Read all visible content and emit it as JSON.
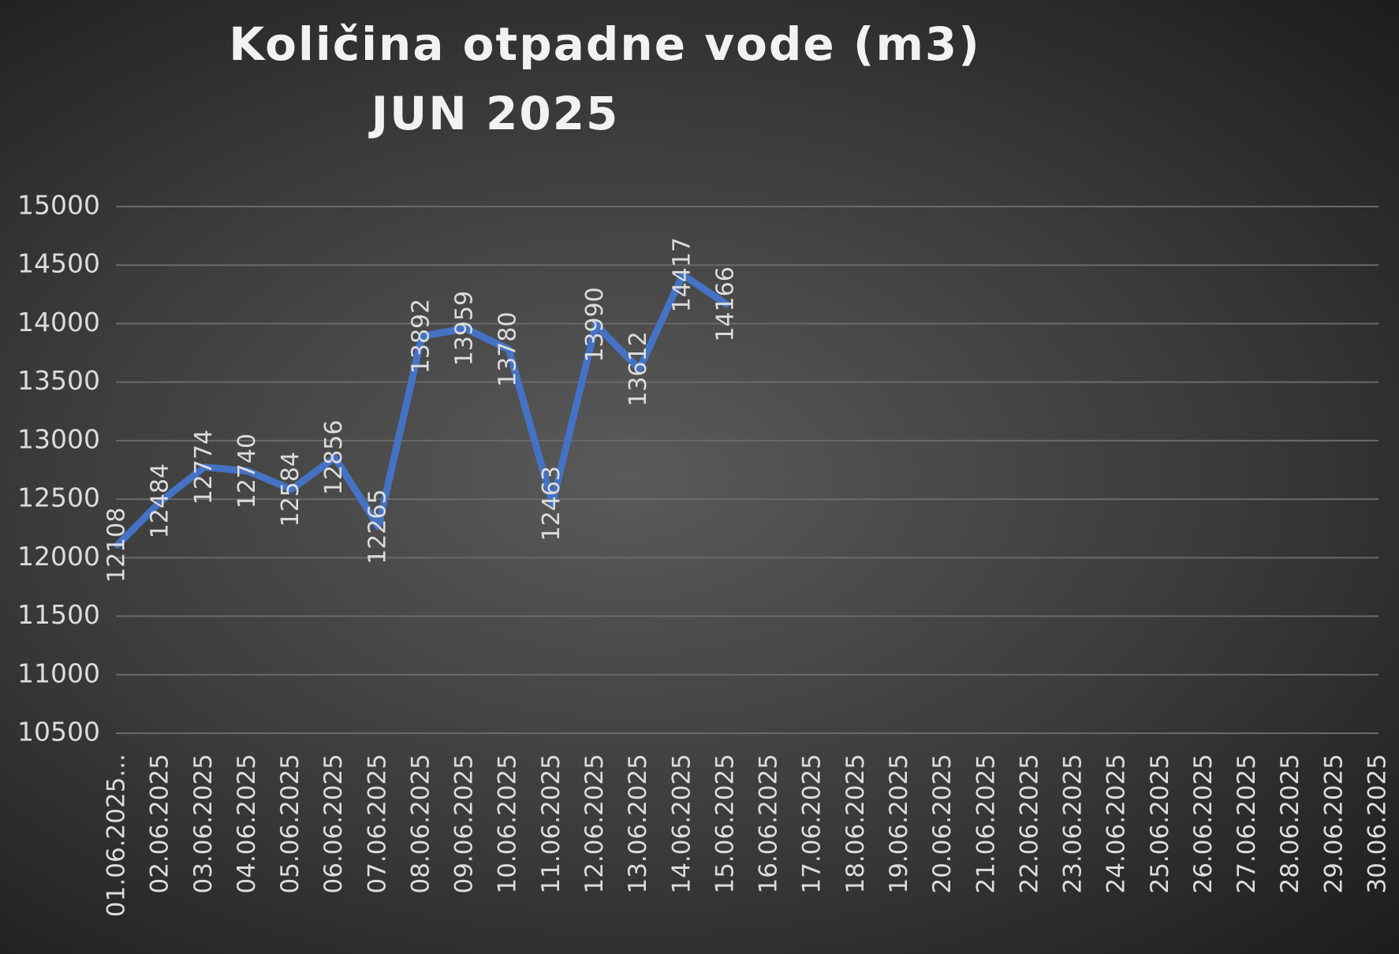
{
  "chart_data": {
    "type": "line",
    "title": "Količina otpadne vode (m3)",
    "subtitle": "JUN 2025",
    "categories": [
      "01.06.2025...",
      "02.06.2025",
      "03.06.2025",
      "04.06.2025",
      "05.06.2025",
      "06.06.2025",
      "07.06.2025",
      "08.06.2025",
      "09.06.2025",
      "10.06.2025",
      "11.06.2025",
      "12.06.2025",
      "13.06.2025",
      "14.06.2025",
      "15.06.2025",
      "16.06.2025",
      "17.06.2025",
      "18.06.2025",
      "19.06.2025",
      "20.06.2025",
      "21.06.2025",
      "22.06.2025",
      "23.06.2025",
      "24.06.2025",
      "25.06.2025",
      "26.06.2025",
      "27.06.2025",
      "28.06.2025",
      "29.06.2025",
      "30.06.2025"
    ],
    "series": [
      {
        "color": "#4472c4",
        "values": [
          12108,
          12484,
          12774,
          12740,
          12584,
          12856,
          12265,
          13892,
          13959,
          13780,
          12463,
          13990,
          13612,
          14417,
          14166,
          null,
          null,
          null,
          null,
          null,
          null,
          null,
          null,
          null,
          null,
          null,
          null,
          null,
          null,
          null
        ]
      }
    ],
    "ylim": [
      10500,
      15000
    ],
    "yticks": [
      10500,
      11000,
      11500,
      12000,
      12500,
      13000,
      13500,
      14000,
      14500,
      15000
    ],
    "grid": true
  }
}
